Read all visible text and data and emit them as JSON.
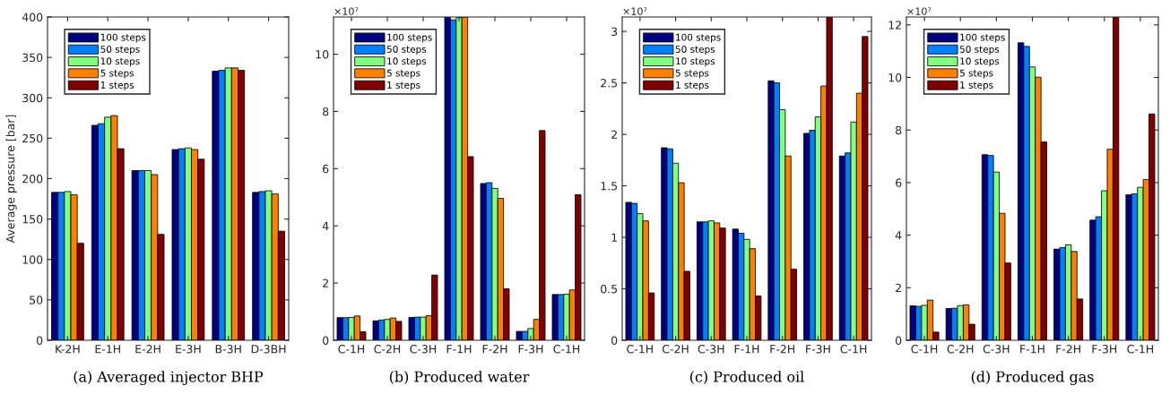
{
  "chart_data": [
    {
      "type": "bar",
      "title": "(a) Averaged injector BHP",
      "ylabel": "Average pressure [bar]",
      "categories": [
        "K-2H",
        "E-1H",
        "E-2H",
        "E-3H",
        "B-3H",
        "D-3BH"
      ],
      "ylim": [
        0,
        400
      ],
      "yticks": [
        0,
        50,
        100,
        150,
        200,
        250,
        300,
        350,
        400
      ],
      "grid": false,
      "legend": "top left",
      "series": [
        {
          "name": "100 steps",
          "color": "#000080",
          "values": [
            183,
            266,
            210,
            236,
            333,
            183
          ]
        },
        {
          "name": "50 steps",
          "color": "#0080ff",
          "values": [
            183,
            268,
            210,
            237,
            334,
            184
          ]
        },
        {
          "name": "10 steps",
          "color": "#80ff80",
          "values": [
            184,
            276,
            210,
            238,
            337,
            185
          ]
        },
        {
          "name": "5 steps",
          "color": "#ff8000",
          "values": [
            180,
            278,
            205,
            236,
            337,
            181
          ]
        },
        {
          "name": "1 steps",
          "color": "#800000",
          "values": [
            120,
            237,
            131,
            224,
            334,
            135
          ]
        }
      ]
    },
    {
      "type": "bar",
      "title": "(b) Produced water",
      "annotations": [
        "×10⁷"
      ],
      "categories": [
        "C-1H",
        "C-2H",
        "C-3H",
        "F-1H",
        "F-2H",
        "F-3H",
        "C-1H"
      ],
      "ylim": [
        0,
        11.3
      ],
      "yticks": [
        0,
        2,
        4,
        6,
        8,
        10
      ],
      "grid": false,
      "legend": "top left",
      "series": [
        {
          "name": "100 steps",
          "color": "#000080",
          "values": [
            0.79,
            0.68,
            0.8,
            11.3,
            5.48,
            0.31,
            1.6
          ]
        },
        {
          "name": "50 steps",
          "color": "#0080ff",
          "values": [
            0.79,
            0.71,
            0.81,
            11.2,
            5.51,
            0.31,
            1.6
          ]
        },
        {
          "name": "10 steps",
          "color": "#80ff80",
          "values": [
            0.8,
            0.73,
            0.81,
            11.28,
            5.31,
            0.41,
            1.61
          ]
        },
        {
          "name": "5 steps",
          "color": "#ff8000",
          "values": [
            0.85,
            0.78,
            0.86,
            11.3,
            4.96,
            0.73,
            1.76
          ]
        },
        {
          "name": "1 steps",
          "color": "#800000",
          "values": [
            0.3,
            0.66,
            2.28,
            6.42,
            1.8,
            7.33,
            5.09
          ]
        }
      ]
    },
    {
      "type": "bar",
      "title": "(c) Produced oil",
      "annotations": [
        "×10⁷"
      ],
      "categories": [
        "C-1H",
        "C-2H",
        "C-3H",
        "F-1H",
        "F-2H",
        "F-3H",
        "C-1H"
      ],
      "ylim": [
        0,
        3.14
      ],
      "yticks": [
        0,
        0.5,
        1,
        1.5,
        2,
        2.5,
        3
      ],
      "grid": false,
      "legend": "top left",
      "series": [
        {
          "name": "100 steps",
          "color": "#000080",
          "values": [
            1.34,
            1.87,
            1.15,
            1.08,
            2.52,
            2.01,
            1.79
          ]
        },
        {
          "name": "50 steps",
          "color": "#0080ff",
          "values": [
            1.33,
            1.86,
            1.15,
            1.04,
            2.5,
            2.04,
            1.82
          ]
        },
        {
          "name": "10 steps",
          "color": "#80ff80",
          "values": [
            1.23,
            1.72,
            1.16,
            0.98,
            2.24,
            2.17,
            2.12
          ]
        },
        {
          "name": "5 steps",
          "color": "#ff8000",
          "values": [
            1.16,
            1.53,
            1.14,
            0.89,
            1.79,
            2.47,
            2.4
          ]
        },
        {
          "name": "1 steps",
          "color": "#800000",
          "values": [
            0.46,
            0.67,
            1.09,
            0.43,
            0.69,
            3.14,
            2.95
          ]
        }
      ]
    },
    {
      "type": "bar",
      "title": "(d) Produced gas",
      "annotations": [
        "×10⁷"
      ],
      "categories": [
        "C-1H",
        "C-2H",
        "C-3H",
        "F-1H",
        "F-2H",
        "F-3H",
        "C-1H"
      ],
      "ylim": [
        0,
        12.3
      ],
      "yticks": [
        0,
        2,
        4,
        6,
        8,
        10,
        12
      ],
      "grid": false,
      "legend": "top left",
      "series": [
        {
          "name": "100 steps",
          "color": "#000080",
          "values": [
            1.31,
            1.21,
            7.06,
            11.32,
            3.47,
            4.57,
            5.54
          ]
        },
        {
          "name": "50 steps",
          "color": "#0080ff",
          "values": [
            1.29,
            1.22,
            7.03,
            11.18,
            3.53,
            4.7,
            5.57
          ]
        },
        {
          "name": "10 steps",
          "color": "#80ff80",
          "values": [
            1.33,
            1.32,
            6.4,
            10.4,
            3.63,
            5.69,
            5.82
          ]
        },
        {
          "name": "5 steps",
          "color": "#ff8000",
          "values": [
            1.53,
            1.35,
            4.83,
            10.01,
            3.38,
            7.27,
            6.12
          ]
        },
        {
          "name": "1 steps",
          "color": "#800000",
          "values": [
            0.31,
            0.61,
            2.94,
            7.55,
            1.57,
            12.3,
            8.61
          ]
        }
      ]
    }
  ]
}
